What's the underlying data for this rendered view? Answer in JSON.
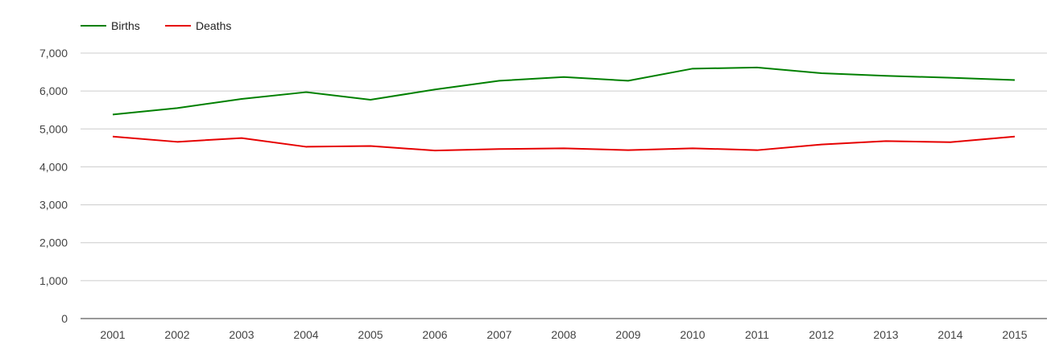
{
  "chart_data": {
    "type": "line",
    "title": "",
    "xlabel": "",
    "ylabel": "",
    "x": [
      "2001",
      "2002",
      "2003",
      "2004",
      "2005",
      "2006",
      "2007",
      "2008",
      "2009",
      "2010",
      "2011",
      "2012",
      "2013",
      "2014",
      "2015"
    ],
    "ylim": [
      0,
      7000
    ],
    "yticks": [
      0,
      1000,
      2000,
      3000,
      4000,
      5000,
      6000,
      7000
    ],
    "ytick_labels": [
      "0",
      "1,000",
      "2,000",
      "3,000",
      "4,000",
      "5,000",
      "6,000",
      "7,000"
    ],
    "grid": true,
    "legend_position": "top-left",
    "series": [
      {
        "name": "Births",
        "color": "#008000",
        "values": [
          5380,
          5550,
          5790,
          5970,
          5770,
          6040,
          6270,
          6370,
          6270,
          6590,
          6620,
          6470,
          6400,
          6350,
          6290
        ]
      },
      {
        "name": "Deaths",
        "color": "#e60000",
        "values": [
          4800,
          4660,
          4760,
          4530,
          4550,
          4430,
          4470,
          4490,
          4440,
          4490,
          4440,
          4590,
          4680,
          4650,
          4800
        ]
      }
    ]
  }
}
